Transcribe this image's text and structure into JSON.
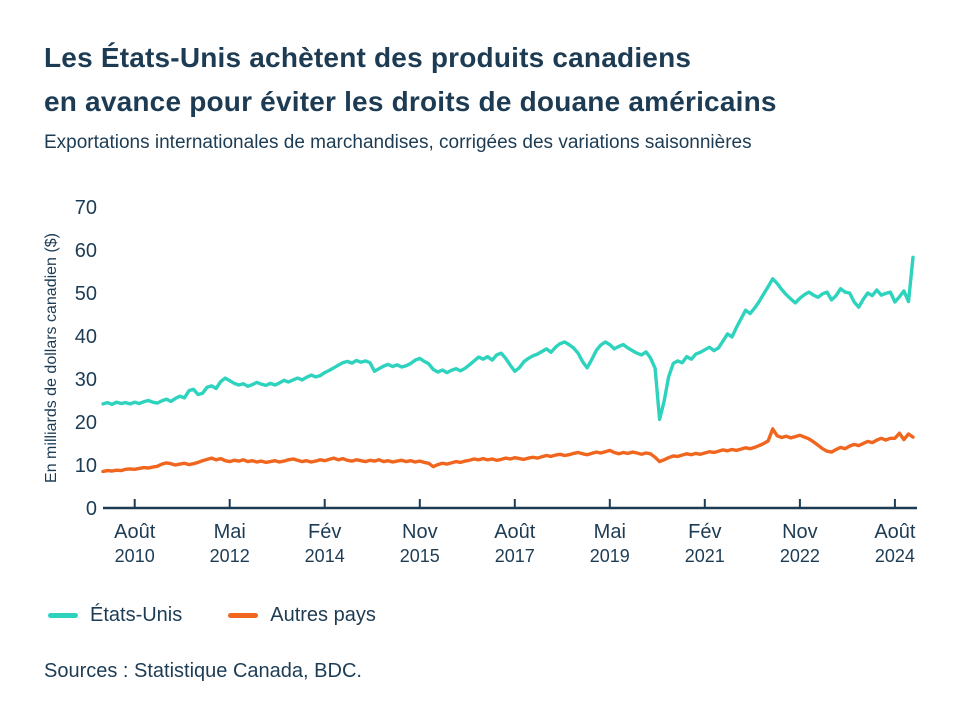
{
  "header": {
    "title_line1": "Les États-Unis achètent des produits canadiens",
    "title_line2": "en avance pour éviter les droits de douane américains",
    "subtitle": "Exportations internationales de marchandises, corrigées des variations saisonnières"
  },
  "legend": {
    "items": [
      {
        "label": "États-Unis",
        "color": "#2ed3be"
      },
      {
        "label": "Autres pays",
        "color": "#f0661e"
      }
    ]
  },
  "source": "Sources : Statistique Canada, BDC.",
  "chart_data": {
    "type": "line",
    "title": "Les États-Unis achètent des produits canadiens en avance pour éviter les droits de douane américains",
    "subtitle": "Exportations internationales de marchandises, corrigées des variations saisonnières",
    "ylabel": "En milliards de dollars canadien ($)",
    "xlabel": "",
    "ylim": [
      0,
      70
    ],
    "yticks": [
      0,
      10,
      20,
      30,
      40,
      50,
      60,
      70
    ],
    "grid": false,
    "legend_position": "bottom",
    "x_unit": "month",
    "x_range": [
      "2010-01",
      "2024-12"
    ],
    "x_ticks": [
      {
        "month": "Août",
        "year": "2010",
        "index": 7
      },
      {
        "month": "Mai",
        "year": "2012",
        "index": 28
      },
      {
        "month": "Fév",
        "year": "2014",
        "index": 49
      },
      {
        "month": "Nov",
        "year": "2015",
        "index": 70
      },
      {
        "month": "Août",
        "year": "2017",
        "index": 91
      },
      {
        "month": "Mai",
        "year": "2019",
        "index": 112
      },
      {
        "month": "Fév",
        "year": "2021",
        "index": 133
      },
      {
        "month": "Nov",
        "year": "2022",
        "index": 154
      },
      {
        "month": "Août",
        "year": "2024",
        "index": 175
      }
    ],
    "colors": {
      "axis": "#1d3c54",
      "text": "#1d3c54"
    },
    "series": [
      {
        "name": "États-Unis",
        "color": "#2ed3be",
        "values": [
          24.2,
          24.5,
          24.1,
          24.6,
          24.3,
          24.5,
          24.2,
          24.6,
          24.3,
          24.7,
          25.0,
          24.6,
          24.4,
          24.9,
          25.3,
          24.8,
          25.5,
          26.0,
          25.6,
          27.3,
          27.6,
          26.4,
          26.7,
          28.1,
          28.4,
          27.8,
          29.4,
          30.2,
          29.6,
          29.0,
          28.6,
          28.9,
          28.3,
          28.7,
          29.2,
          28.8,
          28.5,
          29.0,
          28.6,
          29.1,
          29.7,
          29.3,
          29.8,
          30.2,
          29.8,
          30.4,
          30.9,
          30.5,
          30.8,
          31.5,
          32.0,
          32.6,
          33.2,
          33.8,
          34.1,
          33.7,
          34.3,
          33.9,
          34.2,
          33.8,
          31.8,
          32.4,
          33.0,
          33.4,
          32.9,
          33.3,
          32.8,
          33.1,
          33.6,
          34.4,
          34.8,
          34.1,
          33.5,
          32.2,
          31.6,
          32.1,
          31.5,
          32.0,
          32.4,
          31.9,
          32.5,
          33.3,
          34.2,
          35.1,
          34.6,
          35.2,
          34.4,
          35.6,
          36.0,
          34.8,
          33.2,
          31.8,
          32.6,
          34.0,
          34.8,
          35.4,
          35.8,
          36.4,
          37.0,
          36.2,
          37.4,
          38.2,
          38.6,
          38.0,
          37.2,
          36.0,
          34.0,
          32.6,
          34.5,
          36.6,
          37.9,
          38.6,
          38.0,
          37.0,
          37.6,
          38.0,
          37.2,
          36.6,
          36.0,
          35.6,
          36.3,
          34.9,
          32.5,
          20.6,
          24.8,
          30.5,
          33.6,
          34.2,
          33.8,
          35.2,
          34.6,
          35.8,
          36.2,
          36.8,
          37.4,
          36.6,
          37.2,
          38.8,
          40.5,
          39.8,
          42.0,
          44.0,
          46.0,
          45.2,
          46.5,
          48.0,
          49.8,
          51.5,
          53.3,
          52.2,
          50.8,
          49.6,
          48.6,
          47.7,
          48.8,
          49.6,
          50.2,
          49.5,
          49.0,
          49.8,
          50.2,
          48.4,
          49.4,
          51.0,
          50.2,
          50.0,
          47.9,
          46.7,
          48.5,
          50.0,
          49.4,
          50.7,
          49.5,
          49.9,
          50.2,
          47.9,
          49.1,
          50.5,
          48.0,
          58.3
        ]
      },
      {
        "name": "Autres pays",
        "color": "#f0661e",
        "values": [
          8.5,
          8.7,
          8.6,
          8.8,
          8.7,
          9.0,
          9.1,
          9.0,
          9.2,
          9.4,
          9.3,
          9.5,
          9.7,
          10.2,
          10.5,
          10.3,
          10.0,
          10.2,
          10.4,
          10.1,
          10.3,
          10.6,
          11.0,
          11.3,
          11.6,
          11.2,
          11.5,
          11.0,
          10.8,
          11.1,
          10.9,
          11.2,
          10.8,
          11.0,
          10.7,
          10.9,
          10.6,
          10.8,
          11.0,
          10.7,
          10.9,
          11.2,
          11.4,
          11.1,
          10.8,
          11.0,
          10.7,
          10.9,
          11.2,
          11.0,
          11.3,
          11.6,
          11.2,
          11.5,
          11.1,
          10.9,
          11.2,
          11.0,
          10.8,
          11.1,
          10.9,
          11.2,
          10.8,
          11.0,
          10.7,
          10.9,
          11.1,
          10.8,
          11.0,
          10.7,
          10.9,
          10.6,
          10.4,
          9.6,
          10.1,
          10.4,
          10.2,
          10.5,
          10.8,
          10.6,
          10.9,
          11.1,
          11.4,
          11.2,
          11.5,
          11.2,
          11.4,
          11.1,
          11.3,
          11.6,
          11.4,
          11.7,
          11.5,
          11.3,
          11.6,
          11.8,
          11.6,
          11.9,
          12.2,
          12.0,
          12.3,
          12.5,
          12.2,
          12.4,
          12.7,
          12.9,
          12.6,
          12.4,
          12.7,
          13.0,
          12.8,
          13.1,
          13.4,
          12.9,
          12.6,
          12.9,
          12.7,
          13.0,
          12.8,
          12.5,
          12.8,
          12.6,
          11.8,
          10.8,
          11.2,
          11.7,
          12.1,
          12.0,
          12.3,
          12.6,
          12.4,
          12.7,
          12.5,
          12.8,
          13.1,
          12.9,
          13.2,
          13.5,
          13.3,
          13.6,
          13.4,
          13.7,
          14.0,
          13.8,
          14.1,
          14.5,
          15.0,
          15.6,
          18.4,
          16.8,
          16.4,
          16.7,
          16.3,
          16.6,
          16.9,
          16.5,
          16.1,
          15.4,
          14.6,
          13.8,
          13.2,
          13.0,
          13.6,
          14.1,
          13.8,
          14.4,
          14.8,
          14.5,
          15.0,
          15.5,
          15.2,
          15.8,
          16.2,
          15.8,
          16.2,
          16.2,
          17.4,
          15.9,
          17.2,
          16.5
        ]
      }
    ]
  }
}
